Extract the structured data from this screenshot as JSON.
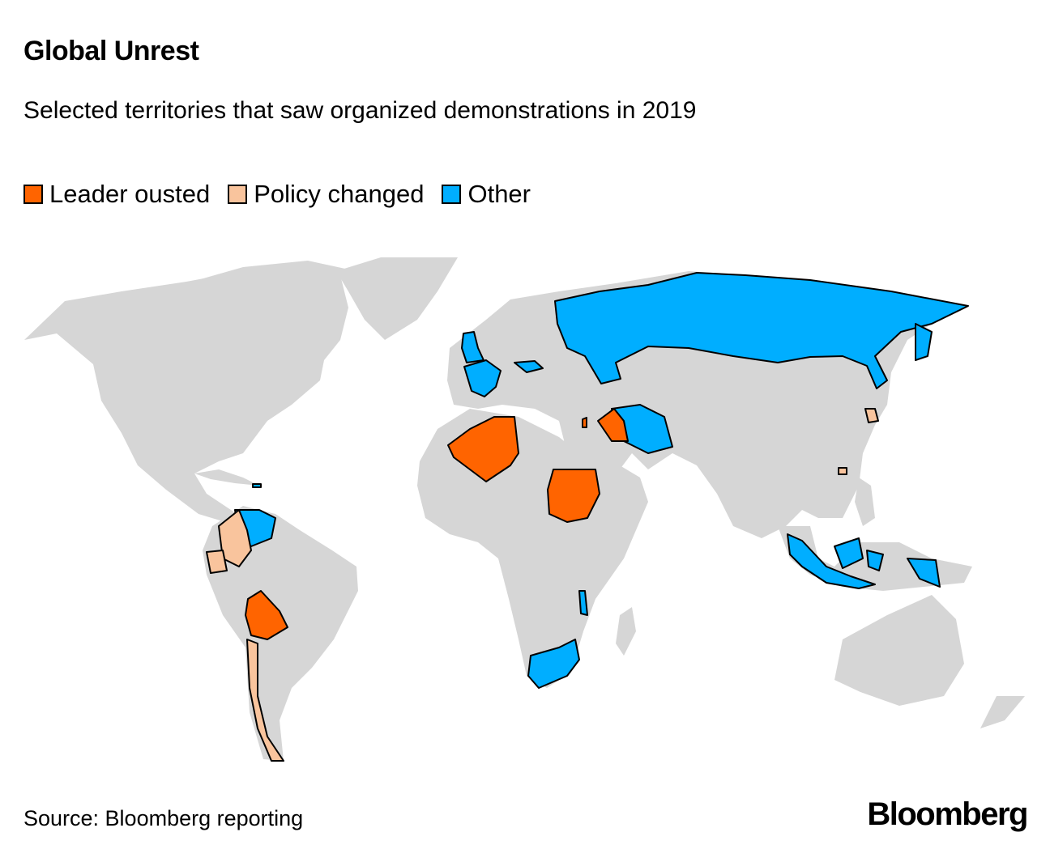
{
  "title": "Global Unrest",
  "subtitle": "Selected territories that saw organized demonstrations in 2019",
  "legend": [
    {
      "label": "Leader ousted",
      "color": "#ff6400"
    },
    {
      "label": "Policy changed",
      "color": "#f9c49d"
    },
    {
      "label": "Other",
      "color": "#00aeff"
    }
  ],
  "land_color": "#d6d6d6",
  "countries": [
    {
      "name": "Algeria",
      "category": "Leader ousted"
    },
    {
      "name": "Sudan",
      "category": "Leader ousted"
    },
    {
      "name": "Iraq",
      "category": "Leader ousted"
    },
    {
      "name": "Bolivia",
      "category": "Leader ousted"
    },
    {
      "name": "Lebanon",
      "category": "Leader ousted"
    },
    {
      "name": "Colombia",
      "category": "Policy changed"
    },
    {
      "name": "Ecuador",
      "category": "Policy changed"
    },
    {
      "name": "Chile",
      "category": "Policy changed"
    },
    {
      "name": "South Korea",
      "category": "Policy changed"
    },
    {
      "name": "Hong Kong",
      "category": "Policy changed"
    },
    {
      "name": "Russia",
      "category": "Other"
    },
    {
      "name": "United Kingdom",
      "category": "Other"
    },
    {
      "name": "France",
      "category": "Other"
    },
    {
      "name": "Czech Republic",
      "category": "Other"
    },
    {
      "name": "Iran",
      "category": "Other"
    },
    {
      "name": "Venezuela",
      "category": "Other"
    },
    {
      "name": "Haiti",
      "category": "Other"
    },
    {
      "name": "Indonesia",
      "category": "Other"
    },
    {
      "name": "Papua New Guinea",
      "category": "Other"
    },
    {
      "name": "South Africa",
      "category": "Other"
    },
    {
      "name": "Malawi",
      "category": "Other"
    },
    {
      "name": "Japan",
      "category": "Other"
    }
  ],
  "source": "Source: Bloomberg reporting",
  "logo": "Bloomberg"
}
